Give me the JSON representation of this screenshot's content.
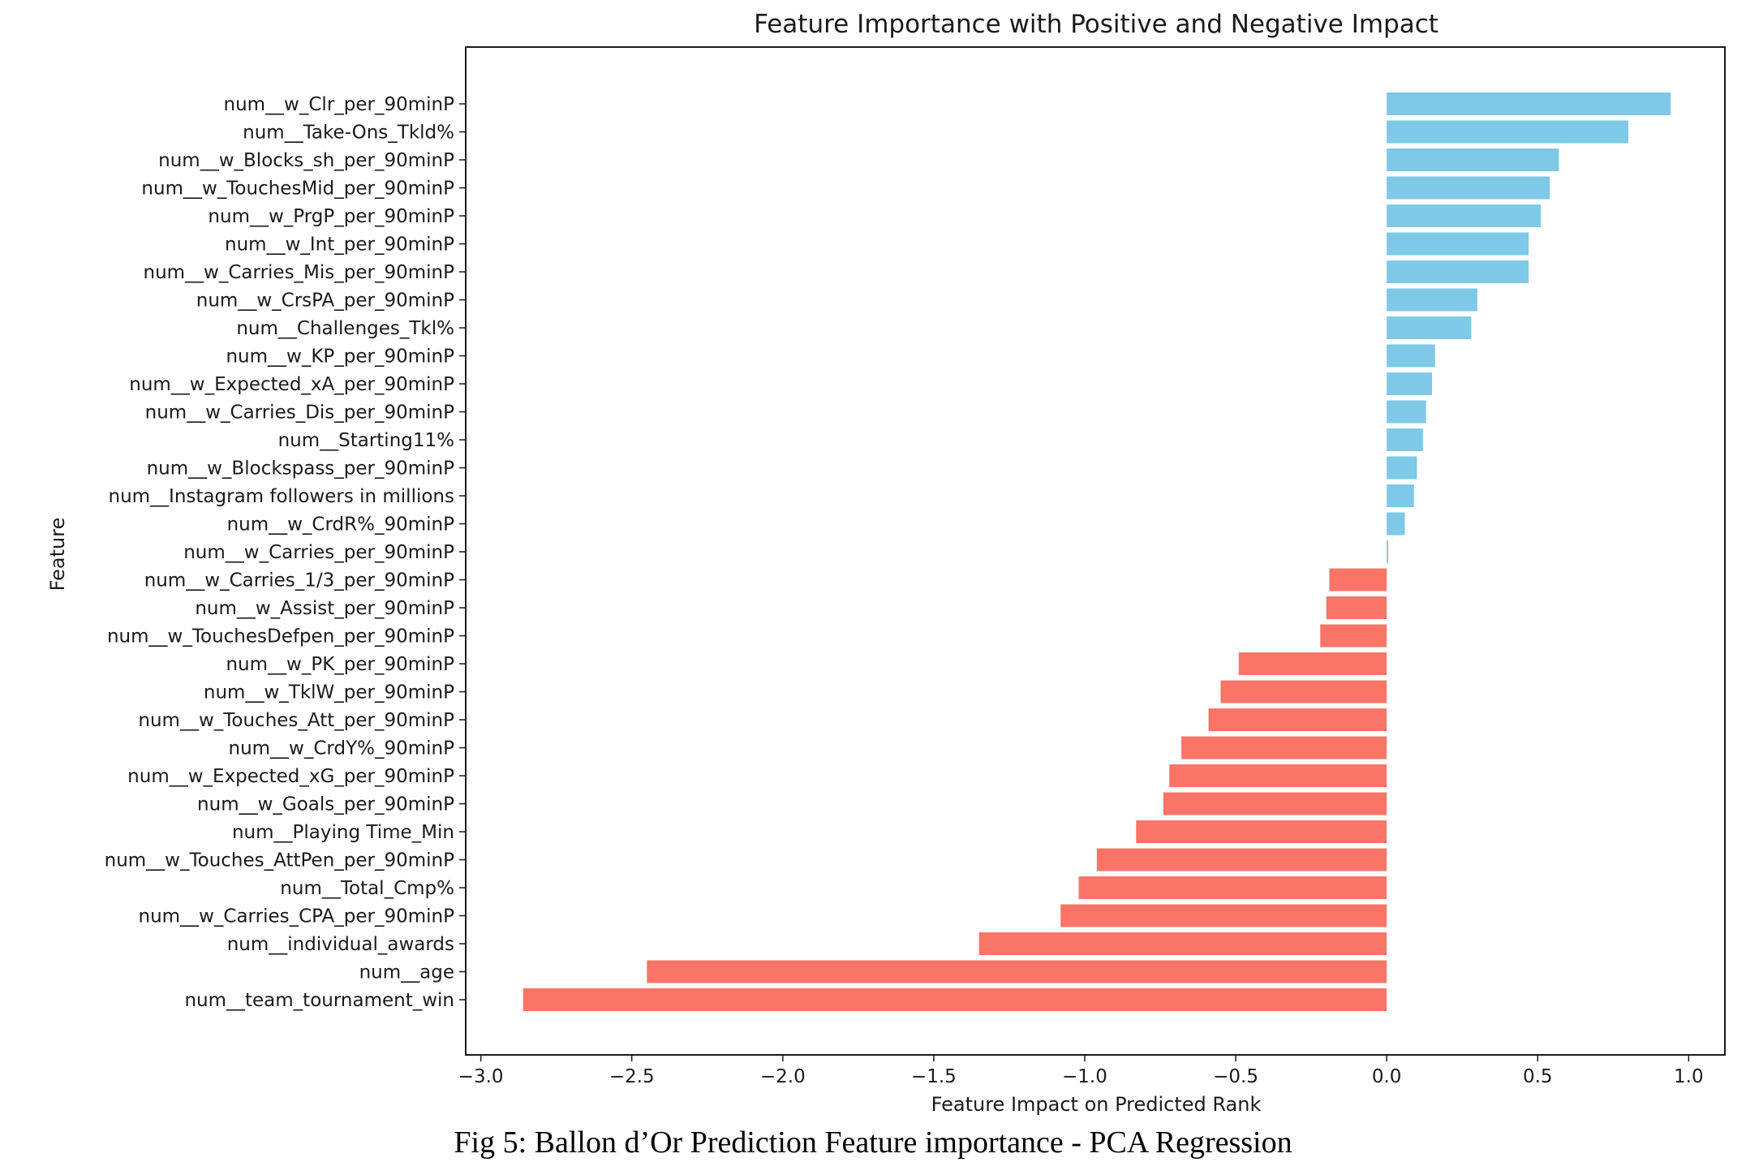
{
  "chart_data": {
    "type": "bar",
    "orientation": "horizontal",
    "title": "Feature Importance with Positive and Negative Impact",
    "xlabel": "Feature Impact on Predicted Rank",
    "ylabel": "Feature",
    "xlim": [
      -3.05,
      1.12
    ],
    "xticks": [
      -3.0,
      -2.5,
      -2.0,
      -1.5,
      -1.0,
      -0.5,
      0.0,
      0.5,
      1.0
    ],
    "xtick_labels": [
      "−3.0",
      "−2.5",
      "−2.0",
      "−1.5",
      "−1.0",
      "−0.5",
      "0.0",
      "0.5",
      "1.0"
    ],
    "grid": false,
    "colors": {
      "positive": "#7ec8e8",
      "negative": "#fa7468",
      "axis": "#1a1a1a"
    },
    "categories": [
      "num__w_Clr_per_90minP",
      "num__Take-Ons_Tkld%",
      "num__w_Blocks_sh_per_90minP",
      "num__w_TouchesMid_per_90minP",
      "num__w_PrgP_per_90minP",
      "num__w_Int_per_90minP",
      "num__w_Carries_Mis_per_90minP",
      "num__w_CrsPA_per_90minP",
      "num__Challenges_Tkl%",
      "num__w_KP_per_90minP",
      "num__w_Expected_xA_per_90minP",
      "num__w_Carries_Dis_per_90minP",
      "num__Starting11%",
      "num__w_Blockspass_per_90minP",
      "num__Instagram followers in millions",
      "num__w_CrdR%_90minP",
      "num__w_Carries_per_90minP",
      "num__w_Carries_1/3_per_90minP",
      "num__w_Assist_per_90minP",
      "num__w_TouchesDefpen_per_90minP",
      "num__w_PK_per_90minP",
      "num__w_TklW_per_90minP",
      "num__w_Touches_Att_per_90minP",
      "num__w_CrdY%_90minP",
      "num__w_Expected_xG_per_90minP",
      "num__w_Goals_per_90minP",
      "num__Playing Time_Min",
      "num__w_Touches_AttPen_per_90minP",
      "num__Total_Cmp%",
      "num__w_Carries_CPA_per_90minP",
      "num__individual_awards",
      "num__age",
      "num__team_tournament_win"
    ],
    "values": [
      0.94,
      0.8,
      0.57,
      0.54,
      0.51,
      0.47,
      0.47,
      0.3,
      0.28,
      0.16,
      0.15,
      0.13,
      0.12,
      0.1,
      0.09,
      0.06,
      0.005,
      -0.19,
      -0.2,
      -0.22,
      -0.49,
      -0.55,
      -0.59,
      -0.68,
      -0.72,
      -0.74,
      -0.83,
      -0.96,
      -1.02,
      -1.08,
      -1.35,
      -2.45,
      -2.86
    ]
  },
  "caption": "Fig 5: Ballon d’Or Prediction Feature importance - PCA Regression"
}
